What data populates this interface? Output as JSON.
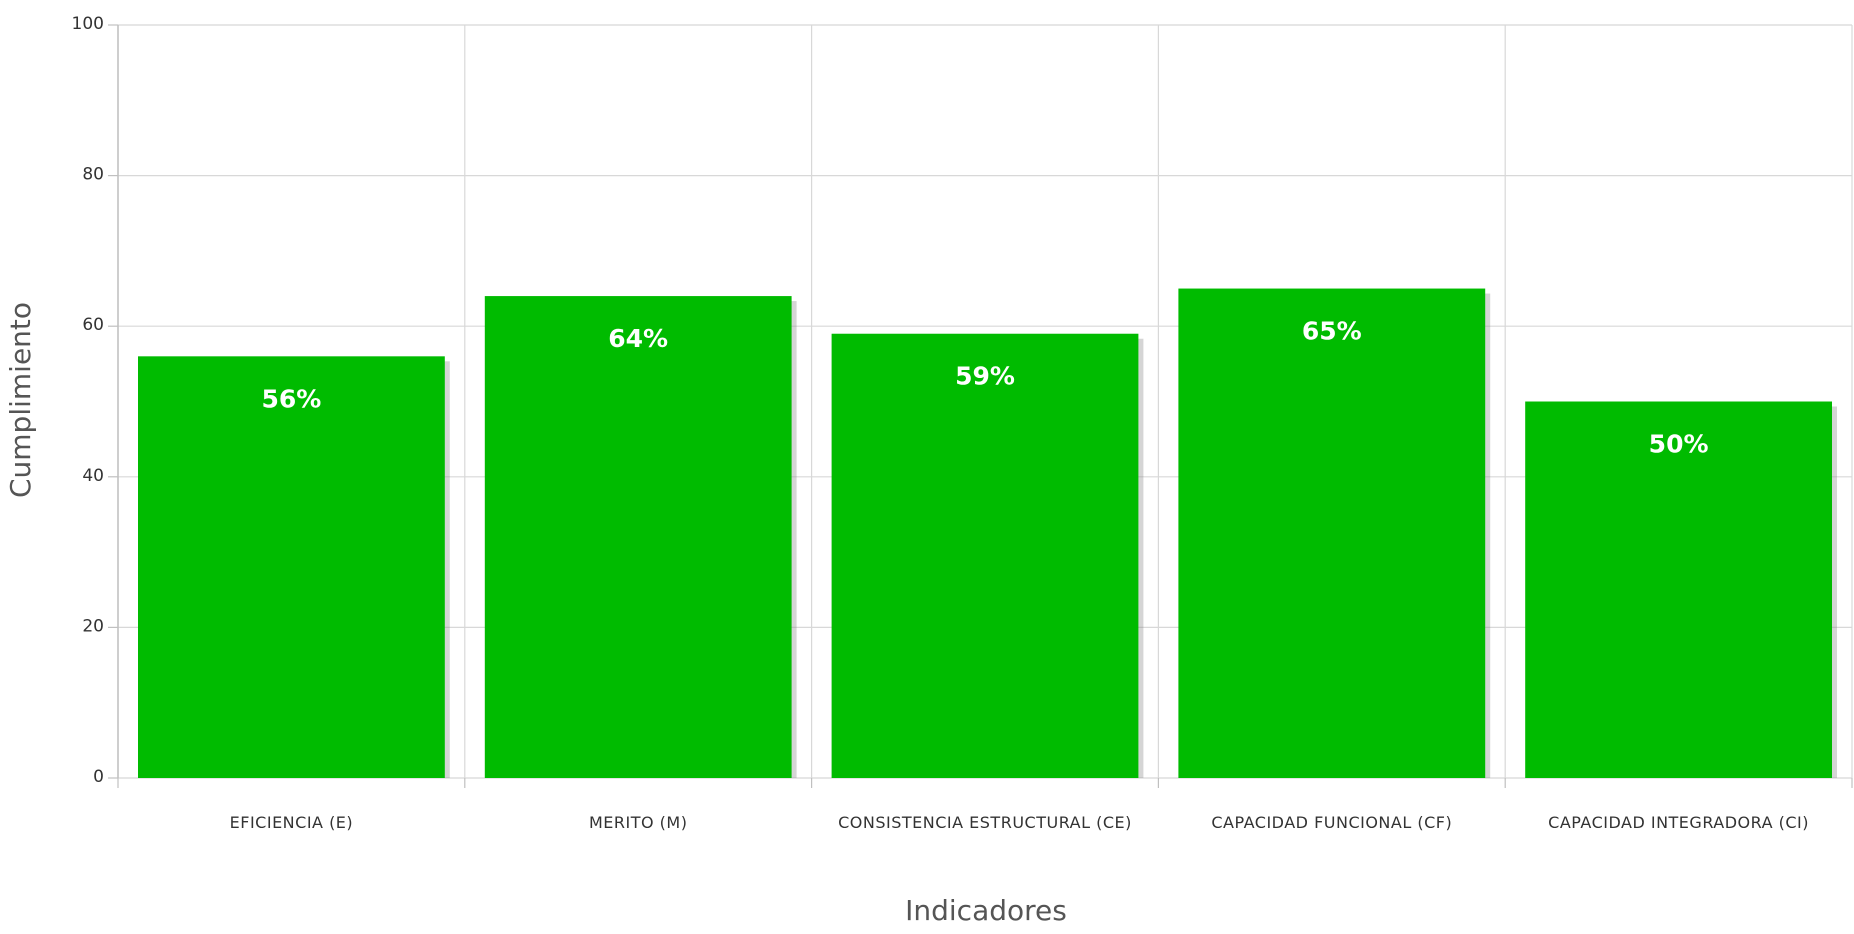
{
  "chart_data": {
    "type": "bar",
    "categories": [
      "EFICIENCIA (E)",
      "MERITO (M)",
      "CONSISTENCIA ESTRUCTURAL (CE)",
      "CAPACIDAD FUNCIONAL (CF)",
      "CAPACIDAD INTEGRADORA (CI)"
    ],
    "values": [
      56,
      64,
      59,
      65,
      50
    ],
    "value_labels": [
      "56%",
      "64%",
      "59%",
      "65%",
      "50%"
    ],
    "title": "",
    "xlabel": "Indicadores",
    "ylabel": "Cumplimiento",
    "ylim": [
      0,
      100
    ],
    "yticks": [
      0,
      20,
      40,
      60,
      80,
      100
    ],
    "ytick_labels": [
      "0",
      "20",
      "40",
      "60",
      "80",
      "100"
    ],
    "grid": true,
    "legend": "none",
    "colors": {
      "bar": "#00bb00",
      "grid": "#d8d8d8",
      "axis": "#c0c0c0",
      "bar_shadow": "#888888"
    }
  }
}
